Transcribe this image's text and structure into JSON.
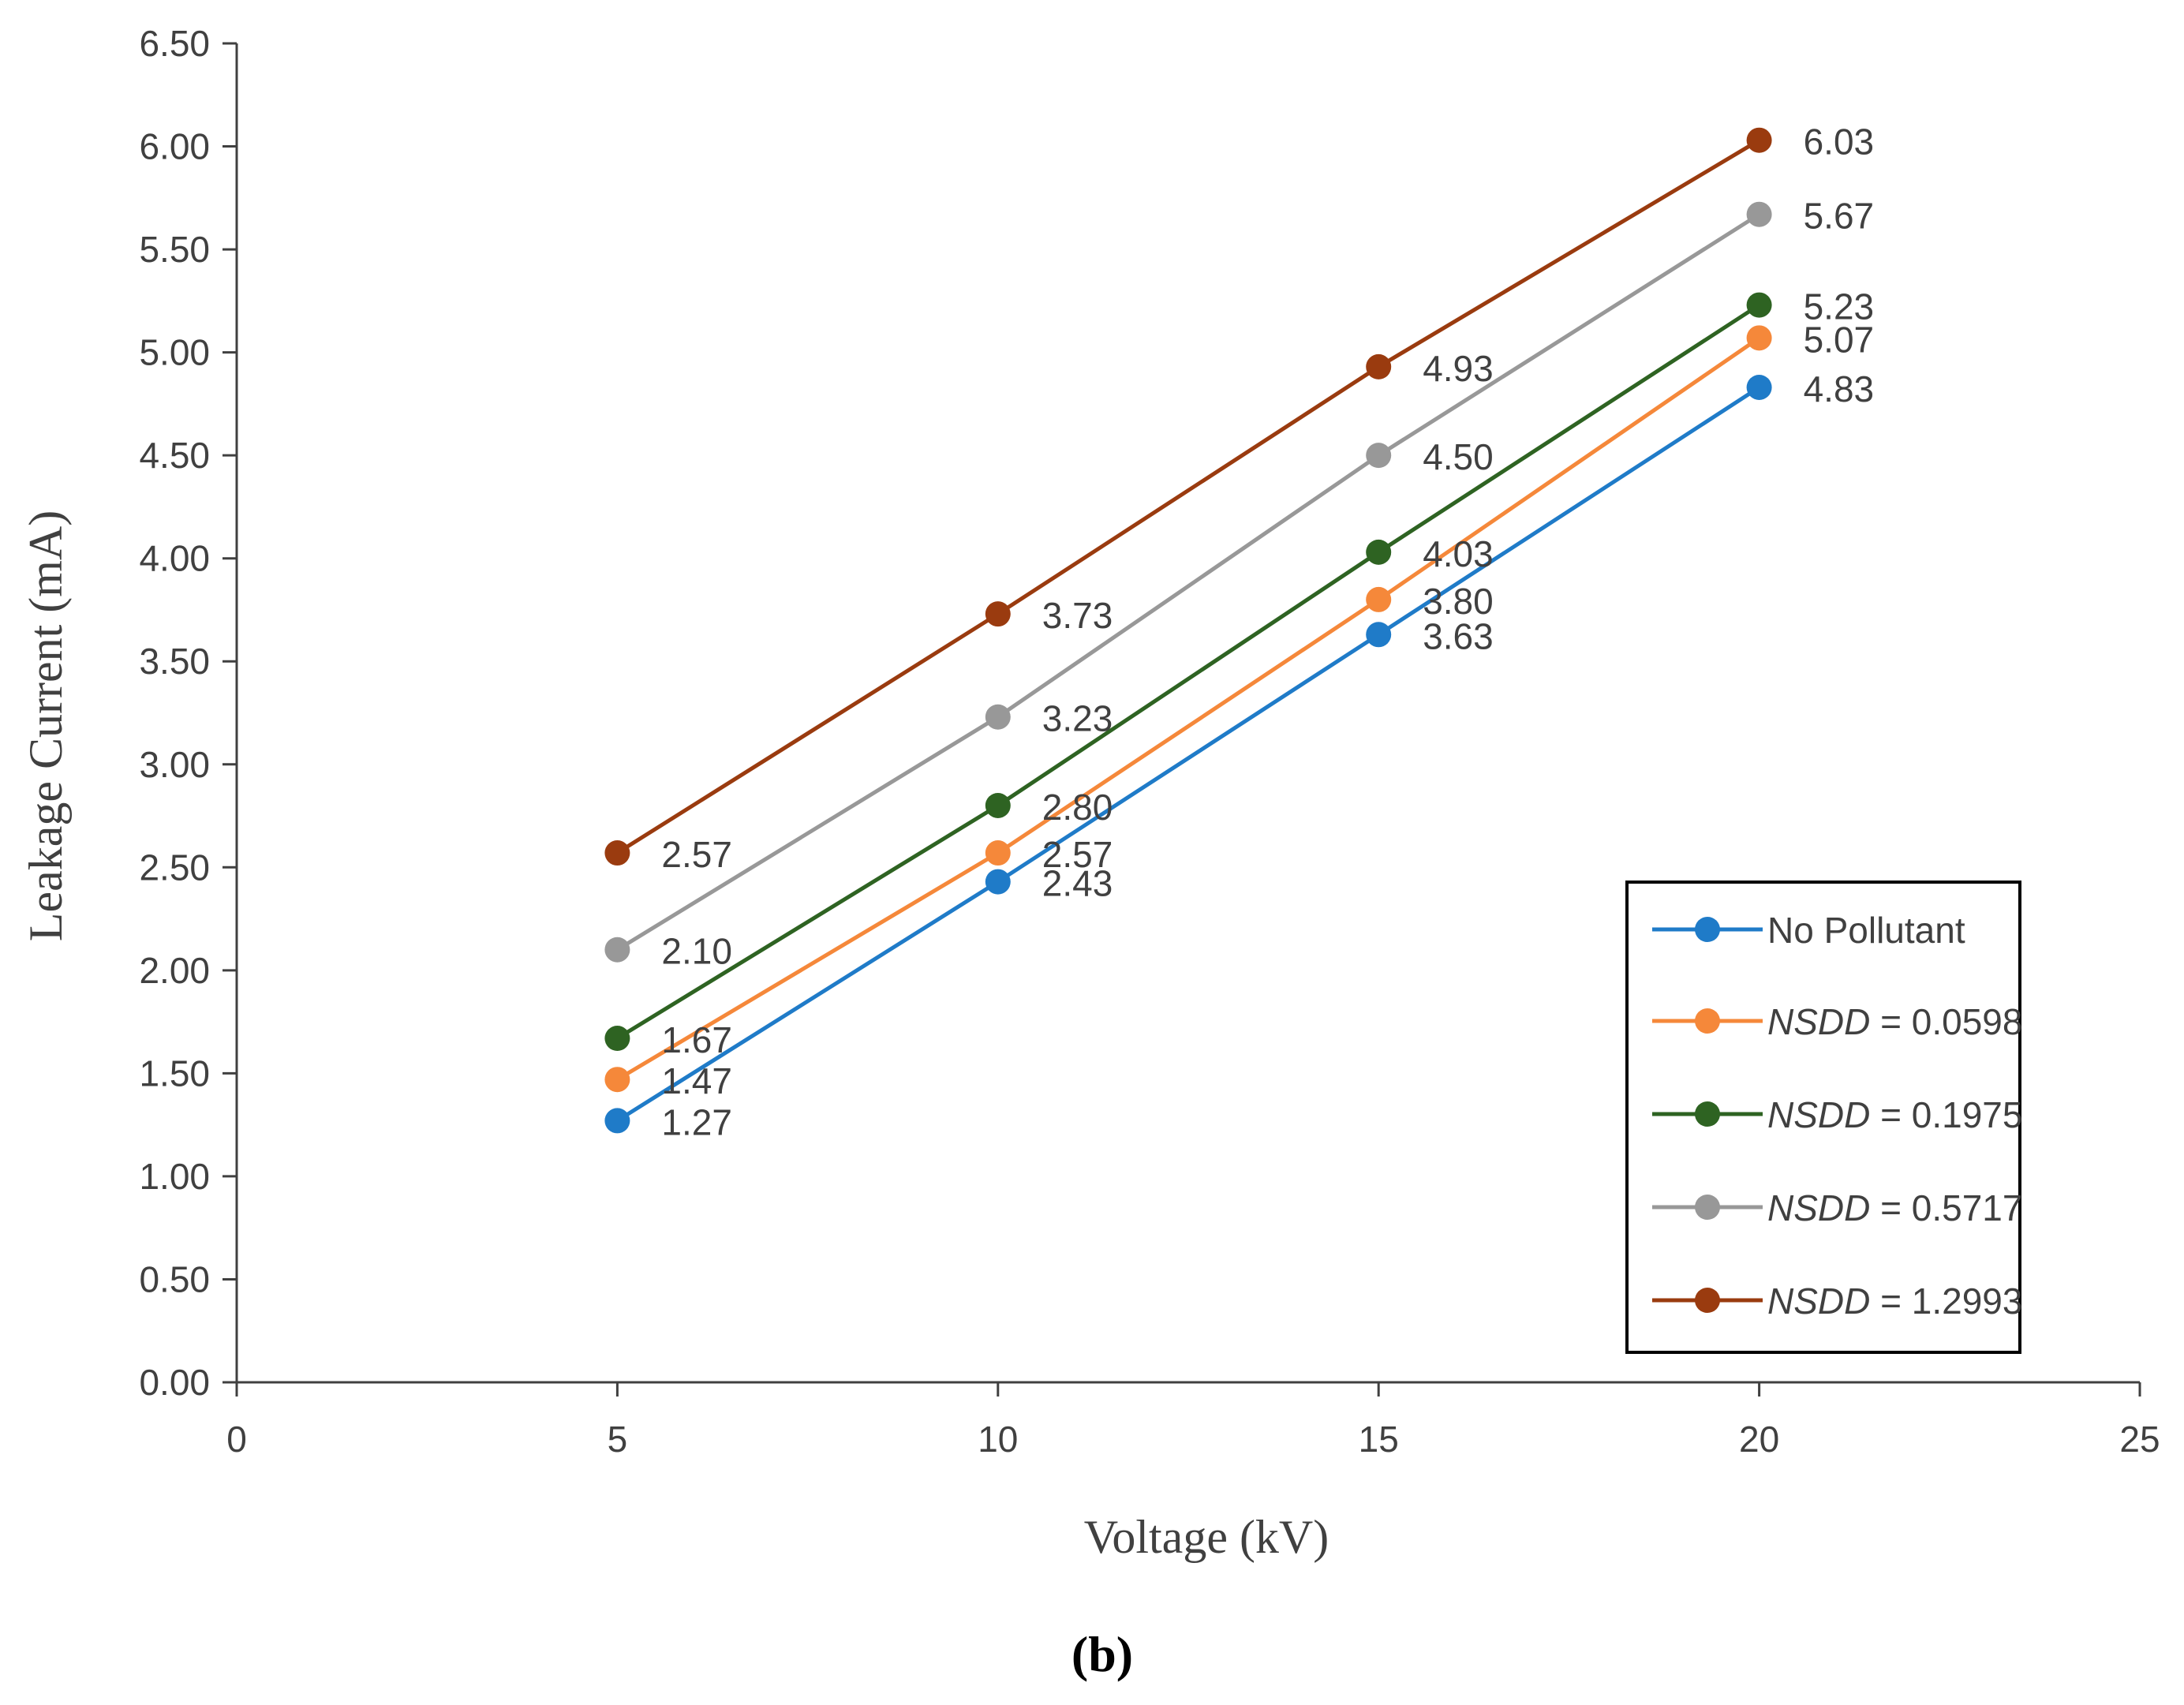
{
  "chart_data": {
    "type": "line",
    "title": "",
    "xlabel": "Voltage (kV)",
    "ylabel": "Leakage Current (mA)",
    "caption": "(b)",
    "xlim": [
      0,
      25
    ],
    "ylim": [
      0,
      6.5
    ],
    "x_ticks": [
      "0",
      "5",
      "10",
      "15",
      "20",
      "25"
    ],
    "y_ticks": [
      "0.00",
      "0.50",
      "1.00",
      "1.50",
      "2.00",
      "2.50",
      "3.00",
      "3.50",
      "4.00",
      "4.50",
      "5.00",
      "5.50",
      "6.00",
      "6.50"
    ],
    "x": [
      5,
      10,
      15,
      20
    ],
    "legend_position": "bottom-right",
    "series": [
      {
        "name": "No Pollutant",
        "color": "#1f7bc8",
        "values": [
          1.27,
          2.43,
          3.63,
          4.83
        ],
        "labels": [
          "1.27",
          "2.43",
          "3.63",
          "4.83"
        ]
      },
      {
        "name": "NSDD = 0.0598",
        "italic_part": "NSDD",
        "rest": " = 0.0598",
        "color": "#f5883a",
        "values": [
          1.47,
          2.57,
          3.8,
          5.07
        ],
        "labels": [
          "1.47",
          "2.57",
          "3.80",
          "5.07"
        ]
      },
      {
        "name": "NSDD = 0.1975",
        "italic_part": "NSDD",
        "rest": " = 0.1975",
        "color": "#2e6322",
        "values": [
          1.67,
          2.8,
          4.03,
          5.23
        ],
        "labels": [
          "1.67",
          "2.80",
          "4.03",
          "5.23"
        ]
      },
      {
        "name": "NSDD = 0.5717",
        "italic_part": "NSDD",
        "rest": " = 0.5717",
        "color": "#989898",
        "values": [
          2.1,
          3.23,
          4.5,
          5.67
        ],
        "labels": [
          "2.10",
          "3.23",
          "4.50",
          "5.67"
        ]
      },
      {
        "name": "NSDD = 1.2993",
        "italic_part": "NSDD",
        "rest": " = 1.2993",
        "color": "#9a3b0f",
        "values": [
          2.57,
          3.73,
          4.93,
          6.03
        ],
        "labels": [
          "2.57",
          "3.73",
          "4.93",
          "6.03"
        ]
      }
    ]
  }
}
